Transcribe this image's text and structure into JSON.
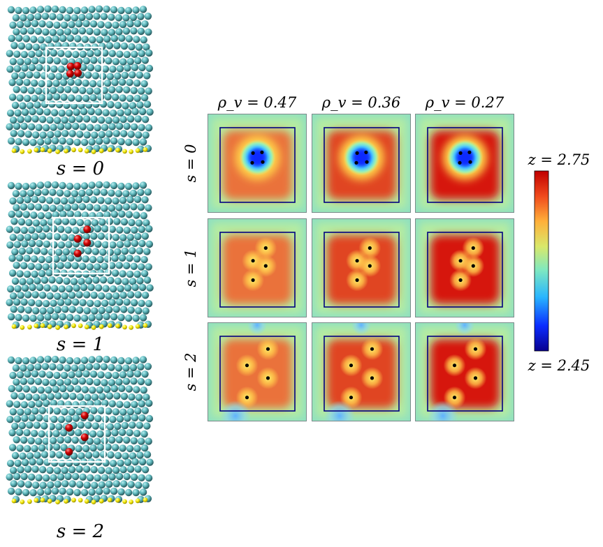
{
  "figure": {
    "snapshots": [
      {
        "label": "s = 0",
        "red_atoms": [
          [
            0.44,
            0.34
          ],
          [
            0.56,
            0.33
          ],
          [
            0.43,
            0.47
          ],
          [
            0.57,
            0.46
          ]
        ]
      },
      {
        "label": "s = 1",
        "red_atoms": [
          [
            0.61,
            0.21
          ],
          [
            0.44,
            0.38
          ],
          [
            0.61,
            0.45
          ],
          [
            0.44,
            0.64
          ]
        ]
      },
      {
        "label": "s = 2",
        "red_atoms": [
          [
            0.64,
            0.17
          ],
          [
            0.36,
            0.39
          ],
          [
            0.64,
            0.56
          ],
          [
            0.36,
            0.82
          ]
        ]
      }
    ],
    "columns": [
      {
        "label": "ρ_v = 0.47",
        "intensity": 0.65
      },
      {
        "label": "ρ_v = 0.36",
        "intensity": 0.82
      },
      {
        "label": "ρ_v = 0.27",
        "intensity": 1.0
      }
    ],
    "rows": [
      {
        "label": "s = 0",
        "dots": [
          [
            0.44,
            0.34
          ],
          [
            0.56,
            0.33
          ],
          [
            0.43,
            0.47
          ],
          [
            0.57,
            0.46
          ]
        ]
      },
      {
        "label": "s = 1",
        "dots": [
          [
            0.61,
            0.21
          ],
          [
            0.44,
            0.38
          ],
          [
            0.61,
            0.45
          ],
          [
            0.44,
            0.64
          ]
        ]
      },
      {
        "label": "s = 2",
        "dots": [
          [
            0.64,
            0.17
          ],
          [
            0.36,
            0.39
          ],
          [
            0.64,
            0.56
          ],
          [
            0.36,
            0.82
          ]
        ]
      }
    ],
    "colorbar": {
      "top_label": "z = 2.75",
      "bottom_label": "z = 2.45",
      "max": 2.75,
      "min": 2.45,
      "colormap": [
        "#08008f",
        "#0a2cff",
        "#29b6ff",
        "#7fe8c0",
        "#d9e86a",
        "#ffb03a",
        "#f04a1c",
        "#c00000"
      ]
    },
    "colors": {
      "atom_cyan": "#5fb8bd",
      "atom_dark": "#26575c",
      "atom_red": "#cc0000",
      "substrate_yellow": "#f2e600",
      "box_outline": "#ffffff",
      "panel_box": "#000080",
      "dot": "#000000"
    }
  }
}
